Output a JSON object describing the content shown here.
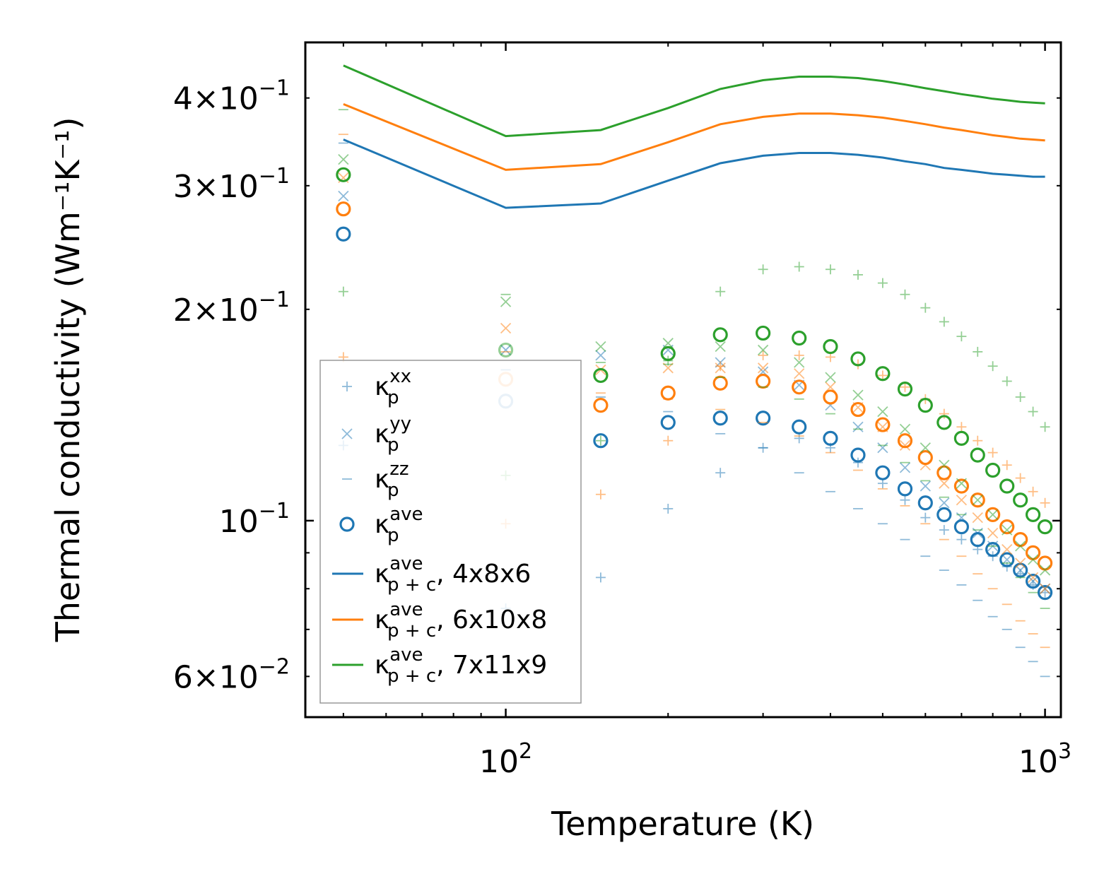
{
  "chart_data": {
    "type": "scatter",
    "xlabel": "Temperature (K)",
    "ylabel": "Thermal conductivity (Wm⁻¹K⁻¹)",
    "xscale": "log",
    "yscale": "log",
    "xlim": [
      42.5,
      1070
    ],
    "ylim": [
      0.0525,
      0.48
    ],
    "x_tick_labels": [
      {
        "value": 100,
        "base": "10",
        "exp": "2"
      },
      {
        "value": 1000,
        "base": "10",
        "exp": "3"
      }
    ],
    "y_tick_labels": [
      {
        "value": 0.06,
        "coef": "6×",
        "base": "10",
        "exp": "−2"
      },
      {
        "value": 0.1,
        "coef": "",
        "base": "10",
        "exp": "−1"
      },
      {
        "value": 0.2,
        "coef": "2×",
        "base": "10",
        "exp": "−1"
      },
      {
        "value": 0.3,
        "coef": "3×",
        "base": "10",
        "exp": "−1"
      },
      {
        "value": 0.4,
        "coef": "4×",
        "base": "10",
        "exp": "−1"
      }
    ],
    "legend_position": "lower-left",
    "colors": {
      "4x8x6": "#1f77b4",
      "6x10x8": "#ff7f0e",
      "7x11x9": "#2ca02c"
    },
    "x": [
      50,
      100,
      150,
      200,
      250,
      300,
      350,
      400,
      450,
      500,
      550,
      600,
      650,
      700,
      750,
      800,
      850,
      900,
      950,
      1000
    ],
    "lines": [
      {
        "name": "4x8x6",
        "color": "#1f77b4",
        "values": [
          0.349,
          0.279,
          0.283,
          0.305,
          0.323,
          0.331,
          0.334,
          0.334,
          0.332,
          0.329,
          0.325,
          0.322,
          0.318,
          0.316,
          0.314,
          0.312,
          0.311,
          0.31,
          0.309,
          0.309
        ]
      },
      {
        "name": "6x10x8",
        "color": "#ff7f0e",
        "values": [
          0.392,
          0.316,
          0.322,
          0.346,
          0.367,
          0.376,
          0.38,
          0.38,
          0.378,
          0.375,
          0.371,
          0.367,
          0.363,
          0.36,
          0.357,
          0.354,
          0.352,
          0.35,
          0.349,
          0.348
        ]
      },
      {
        "name": "7x11x9",
        "color": "#2ca02c",
        "values": [
          0.445,
          0.353,
          0.36,
          0.387,
          0.412,
          0.424,
          0.429,
          0.429,
          0.427,
          0.423,
          0.418,
          0.413,
          0.409,
          0.405,
          0.402,
          0.399,
          0.397,
          0.395,
          0.394,
          0.393
        ]
      }
    ],
    "scatter": [
      {
        "group": "4x8x6",
        "color": "#1f77b4",
        "kxx": [
          0.128,
          0.075,
          0.083,
          0.104,
          0.117,
          0.127,
          0.131,
          0.127,
          0.121,
          0.113,
          0.107,
          0.101,
          0.097,
          0.094,
          0.091,
          0.089,
          0.086,
          0.084,
          0.081,
          0.079
        ],
        "kyy": [
          0.29,
          0.175,
          0.172,
          0.175,
          0.168,
          0.163,
          0.156,
          0.146,
          0.136,
          0.127,
          0.119,
          0.112,
          0.106,
          0.101,
          0.096,
          0.092,
          0.088,
          0.085,
          0.082,
          0.08
        ],
        "kzz": [
          0.345,
          0.164,
          0.15,
          0.143,
          0.133,
          0.127,
          0.117,
          0.11,
          0.104,
          0.099,
          0.094,
          0.089,
          0.085,
          0.081,
          0.077,
          0.073,
          0.07,
          0.066,
          0.063,
          0.06
        ],
        "kave": [
          0.256,
          0.148,
          0.13,
          0.138,
          0.14,
          0.14,
          0.136,
          0.131,
          0.124,
          0.117,
          0.111,
          0.106,
          0.102,
          0.098,
          0.094,
          0.091,
          0.088,
          0.085,
          0.082,
          0.079
        ]
      },
      {
        "group": "6x10x8",
        "color": "#ff7f0e",
        "kxx": [
          0.171,
          0.099,
          0.109,
          0.13,
          0.166,
          0.172,
          0.172,
          0.171,
          0.167,
          0.161,
          0.155,
          0.149,
          0.142,
          0.136,
          0.13,
          0.125,
          0.12,
          0.115,
          0.11,
          0.106
        ],
        "kyy": [
          0.308,
          0.188,
          0.164,
          0.165,
          0.165,
          0.165,
          0.162,
          0.155,
          0.145,
          0.136,
          0.128,
          0.12,
          0.113,
          0.107,
          0.101,
          0.096,
          0.091,
          0.087,
          0.083,
          0.08
        ],
        "kzz": [
          0.355,
          0.174,
          0.152,
          0.149,
          0.144,
          0.138,
          0.132,
          0.125,
          0.118,
          0.111,
          0.105,
          0.099,
          0.094,
          0.089,
          0.084,
          0.08,
          0.076,
          0.072,
          0.069,
          0.066
        ],
        "kave": [
          0.278,
          0.159,
          0.146,
          0.152,
          0.157,
          0.158,
          0.155,
          0.15,
          0.144,
          0.137,
          0.13,
          0.123,
          0.117,
          0.112,
          0.107,
          0.102,
          0.098,
          0.094,
          0.09,
          0.087
        ]
      },
      {
        "group": "7x11x9",
        "color": "#2ca02c",
        "kxx": [
          0.212,
          0.116,
          0.13,
          0.169,
          0.212,
          0.228,
          0.23,
          0.228,
          0.224,
          0.218,
          0.21,
          0.201,
          0.192,
          0.183,
          0.174,
          0.166,
          0.158,
          0.15,
          0.143,
          0.136
        ],
        "kyy": [
          0.327,
          0.205,
          0.177,
          0.179,
          0.177,
          0.175,
          0.168,
          0.16,
          0.151,
          0.143,
          0.135,
          0.127,
          0.12,
          0.113,
          0.107,
          0.102,
          0.097,
          0.092,
          0.088,
          0.085
        ],
        "kzz": [
          0.385,
          0.21,
          0.168,
          0.167,
          0.16,
          0.155,
          0.149,
          0.142,
          0.135,
          0.128,
          0.121,
          0.114,
          0.108,
          0.102,
          0.097,
          0.092,
          0.087,
          0.083,
          0.079,
          0.075
        ],
        "kave": [
          0.311,
          0.175,
          0.161,
          0.173,
          0.184,
          0.185,
          0.182,
          0.177,
          0.17,
          0.162,
          0.154,
          0.146,
          0.138,
          0.131,
          0.124,
          0.118,
          0.112,
          0.107,
          0.102,
          0.098
        ]
      }
    ],
    "legend": [
      {
        "kind": "plus",
        "color": "#1f77b4",
        "sym": "κ",
        "sub": "p",
        "sup": "xx",
        "suffix": ""
      },
      {
        "kind": "cross",
        "color": "#1f77b4",
        "sym": "κ",
        "sub": "p",
        "sup": "yy",
        "suffix": ""
      },
      {
        "kind": "dash",
        "color": "#1f77b4",
        "sym": "κ",
        "sub": "p",
        "sup": "zz",
        "suffix": ""
      },
      {
        "kind": "circle",
        "color": "#1f77b4",
        "sym": "κ",
        "sub": "p",
        "sup": "ave",
        "suffix": ""
      },
      {
        "kind": "line",
        "color": "#1f77b4",
        "sym": "κ",
        "sub": "p + c",
        "sup": "ave",
        "suffix": ", 4x8x6"
      },
      {
        "kind": "line",
        "color": "#ff7f0e",
        "sym": "κ",
        "sub": "p + c",
        "sup": "ave",
        "suffix": ", 6x10x8"
      },
      {
        "kind": "line",
        "color": "#2ca02c",
        "sym": "κ",
        "sub": "p + c",
        "sup": "ave",
        "suffix": ", 7x11x9"
      }
    ]
  }
}
